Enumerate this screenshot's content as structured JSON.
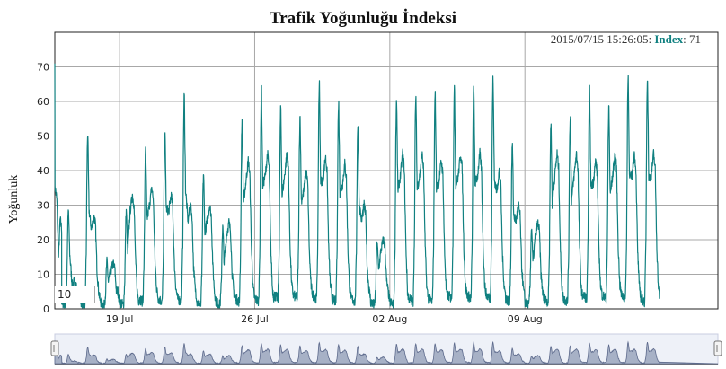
{
  "chart_data": {
    "type": "line",
    "title": "Trafik Yoğunluğu İndeksi",
    "ylabel": "Yoğunluk",
    "xlabel": "",
    "x_range": [
      "2015-07-15T15:26:05",
      "2015-08-19T00:00:00"
    ],
    "ylim": [
      0,
      80
    ],
    "y_ticks": [
      0,
      10,
      20,
      30,
      40,
      50,
      60,
      70
    ],
    "x_ticks": [
      "2015-07-19",
      "2015-07-26",
      "2015-08-02",
      "2015-08-09"
    ],
    "x_tick_labels": [
      "19 Jul",
      "26 Jul",
      "02 Aug",
      "09 Aug"
    ],
    "grid": true,
    "line_color": "#108080",
    "series": [
      {
        "name": "Index",
        "daily": [
          {
            "date": "2015-07-15",
            "am_peak": 71,
            "pm_peak": 35,
            "night": 22
          },
          {
            "date": "2015-07-16",
            "am_peak": 29,
            "pm_peak": 8,
            "night": 1
          },
          {
            "date": "2015-07-17",
            "am_peak": 52,
            "pm_peak": 27,
            "night": 1
          },
          {
            "date": "2015-07-18",
            "am_peak": 14,
            "pm_peak": 13,
            "night": 1
          },
          {
            "date": "2015-07-19",
            "am_peak": 29,
            "pm_peak": 33,
            "night": 1
          },
          {
            "date": "2015-07-20",
            "am_peak": 47,
            "pm_peak": 35,
            "night": 2
          },
          {
            "date": "2015-07-21",
            "am_peak": 53,
            "pm_peak": 33,
            "night": 2
          },
          {
            "date": "2015-07-22",
            "am_peak": 63,
            "pm_peak": 30,
            "night": 2
          },
          {
            "date": "2015-07-23",
            "am_peak": 40,
            "pm_peak": 30,
            "night": 1
          },
          {
            "date": "2015-07-24",
            "am_peak": 24,
            "pm_peak": 25,
            "night": 1
          },
          {
            "date": "2015-07-25",
            "am_peak": 56,
            "pm_peak": 43,
            "night": 2
          },
          {
            "date": "2015-07-26",
            "am_peak": 65,
            "pm_peak": 45,
            "night": 2
          },
          {
            "date": "2015-07-27",
            "am_peak": 59,
            "pm_peak": 45,
            "night": 3
          },
          {
            "date": "2015-07-28",
            "am_peak": 57,
            "pm_peak": 40,
            "night": 3
          },
          {
            "date": "2015-07-29",
            "am_peak": 67,
            "pm_peak": 44,
            "night": 3
          },
          {
            "date": "2015-07-30",
            "am_peak": 61,
            "pm_peak": 42,
            "night": 2
          },
          {
            "date": "2015-07-31",
            "am_peak": 55,
            "pm_peak": 30,
            "night": 2
          },
          {
            "date": "2015-08-01",
            "am_peak": 20,
            "pm_peak": 20,
            "night": 1
          },
          {
            "date": "2015-08-02",
            "am_peak": 62,
            "pm_peak": 45,
            "night": 1
          },
          {
            "date": "2015-08-03",
            "am_peak": 63,
            "pm_peak": 45,
            "night": 2
          },
          {
            "date": "2015-08-04",
            "am_peak": 64,
            "pm_peak": 43,
            "night": 2
          },
          {
            "date": "2015-08-05",
            "am_peak": 65,
            "pm_peak": 45,
            "night": 3
          },
          {
            "date": "2015-08-06",
            "am_peak": 66,
            "pm_peak": 45,
            "night": 3
          },
          {
            "date": "2015-08-07",
            "am_peak": 68,
            "pm_peak": 40,
            "night": 3
          },
          {
            "date": "2015-08-08",
            "am_peak": 49,
            "pm_peak": 30,
            "night": 2
          },
          {
            "date": "2015-08-09",
            "am_peak": 24,
            "pm_peak": 25,
            "night": 1
          },
          {
            "date": "2015-08-10",
            "am_peak": 55,
            "pm_peak": 45,
            "night": 2
          },
          {
            "date": "2015-08-11",
            "am_peak": 57,
            "pm_peak": 45,
            "night": 2
          },
          {
            "date": "2015-08-12",
            "am_peak": 65,
            "pm_peak": 43,
            "night": 3
          },
          {
            "date": "2015-08-13",
            "am_peak": 60,
            "pm_peak": 45,
            "night": 3
          },
          {
            "date": "2015-08-14",
            "am_peak": 69,
            "pm_peak": 45,
            "night": 3
          },
          {
            "date": "2015-08-15",
            "am_peak": 69,
            "pm_peak": 45,
            "night": 2
          }
        ]
      }
    ],
    "legend": {
      "timestamp": "2015/07/15 15:26:05",
      "series_label": "Index",
      "value": "71",
      "placement": "top-right"
    },
    "roll_period": "10",
    "range_selector": true
  }
}
